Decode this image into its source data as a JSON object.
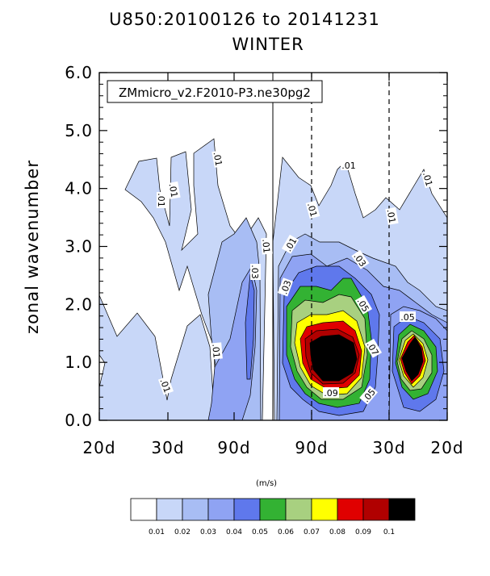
{
  "chart_data": {
    "type": "contour",
    "title": "U850:20100126 to 20141231",
    "subtitle": "WINTER",
    "case_label": "ZMmicro_v2.F2010-P3.ne30pg2",
    "ylabel": "zonal wavenumber",
    "ylim": [
      0,
      6
    ],
    "yticks": [
      "0.0",
      "1.0",
      "2.0",
      "3.0",
      "4.0",
      "5.0",
      "6.0"
    ],
    "xticks": [
      "20d",
      "30d",
      "90d",
      "90d",
      "30d",
      "20d"
    ],
    "units": "(m/s)",
    "levels": [
      "0.01",
      "0.02",
      "0.03",
      "0.04",
      "0.05",
      "0.06",
      "0.07",
      "0.08",
      "0.09",
      "0.1"
    ],
    "fill_colors": [
      "#ffffff",
      "#c8d7f8",
      "#a8bdf4",
      "#8fa3f3",
      "#5f78ec",
      "#33b233",
      "#a8d080",
      "#ffff00",
      "#e00000",
      "#b00000",
      "#000000"
    ],
    "contour_labels": [
      ".01",
      ".01",
      ".01",
      ".01",
      ".01",
      ".03",
      ".01",
      ".01",
      ".01",
      ".01",
      ".01",
      ".01",
      ".03",
      ".03",
      ".05",
      ".07",
      ".09",
      ".05",
      ".05"
    ]
  }
}
